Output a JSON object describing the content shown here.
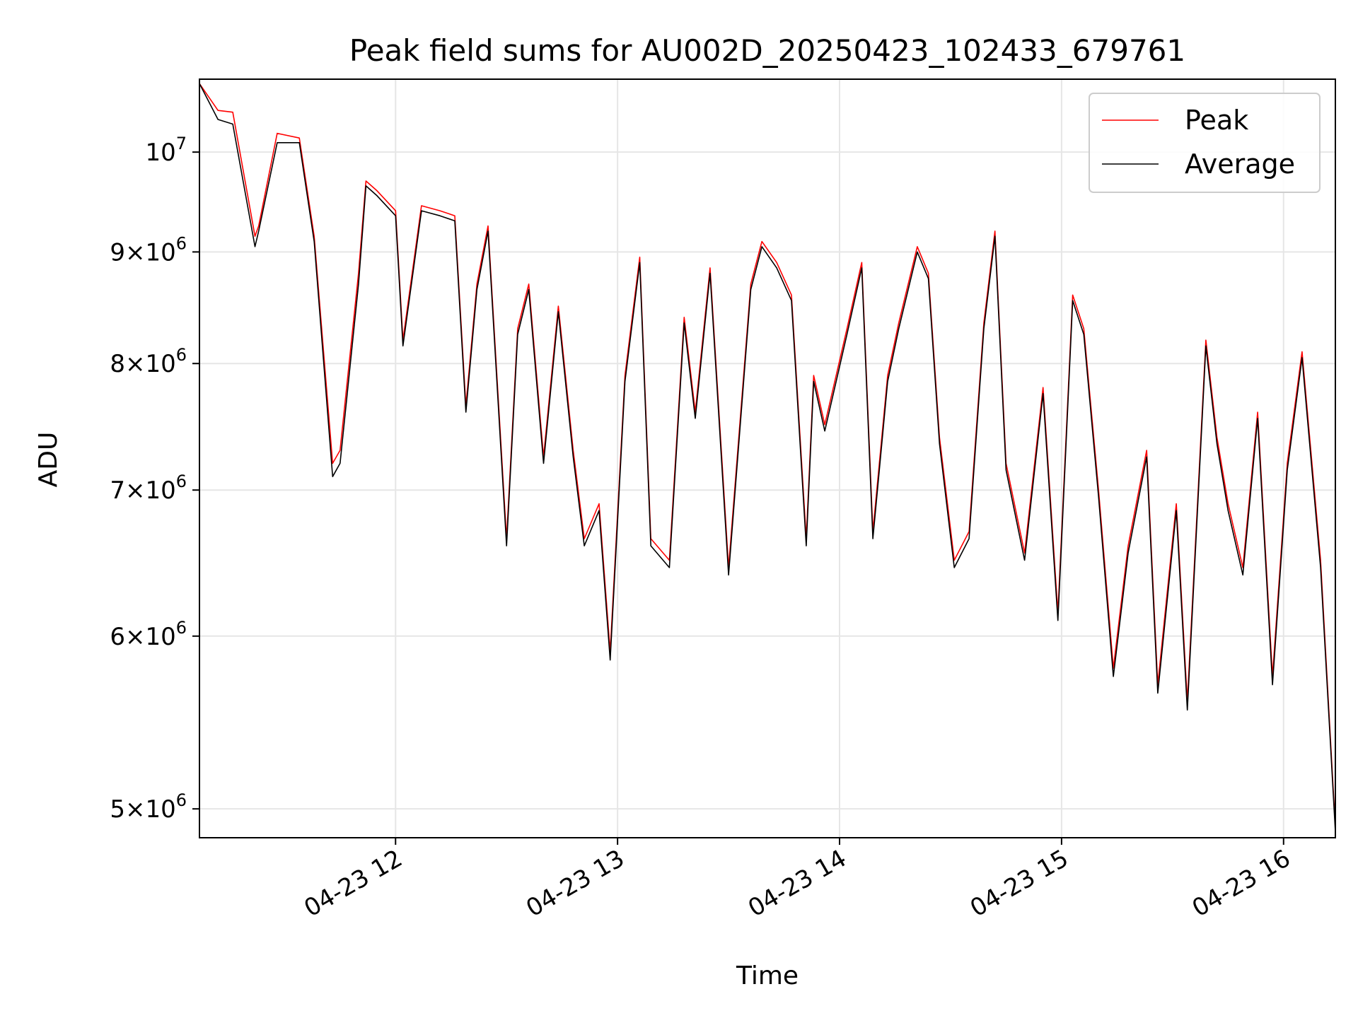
{
  "chart_data": {
    "type": "line",
    "title": "Peak field sums for AU002D_20250423_102433_679761",
    "xlabel": "Time",
    "ylabel": "ADU",
    "y_scale": "log",
    "grid": true,
    "legend_position": "top-right",
    "xlim": [
      "2025-04-23 11:07",
      "2025-04-23 16:14"
    ],
    "ylim": [
      4850000,
      10800000
    ],
    "x_ticks": [
      {
        "value": "2025-04-23 12:00",
        "label": "04-23 12"
      },
      {
        "value": "2025-04-23 13:00",
        "label": "04-23 13"
      },
      {
        "value": "2025-04-23 14:00",
        "label": "04-23 14"
      },
      {
        "value": "2025-04-23 15:00",
        "label": "04-23 15"
      },
      {
        "value": "2025-04-23 16:00",
        "label": "04-23 16"
      }
    ],
    "y_ticks": [
      {
        "value": 5000000,
        "base": "5",
        "exp": "6"
      },
      {
        "value": 6000000,
        "base": "6",
        "exp": "6"
      },
      {
        "value": 7000000,
        "base": "7",
        "exp": "6"
      },
      {
        "value": 8000000,
        "base": "8",
        "exp": "6"
      },
      {
        "value": 9000000,
        "base": "9",
        "exp": "6"
      },
      {
        "value": 10000000,
        "base": "10",
        "exp": "7"
      }
    ],
    "series": [
      {
        "name": "Peak",
        "color": "#ff0000",
        "x": [
          "2025-04-23 11:07",
          "2025-04-23 11:12",
          "2025-04-23 11:16",
          "2025-04-23 11:22",
          "2025-04-23 11:23",
          "2025-04-23 11:28",
          "2025-04-23 11:34",
          "2025-04-23 11:38",
          "2025-04-23 11:43",
          "2025-04-23 11:45",
          "2025-04-23 11:50",
          "2025-04-23 11:52",
          "2025-04-23 11:55",
          "2025-04-23 12:00",
          "2025-04-23 12:02",
          "2025-04-23 12:07",
          "2025-04-23 12:12",
          "2025-04-23 12:16",
          "2025-04-23 12:19",
          "2025-04-23 12:22",
          "2025-04-23 12:25",
          "2025-04-23 12:30",
          "2025-04-23 12:33",
          "2025-04-23 12:36",
          "2025-04-23 12:40",
          "2025-04-23 12:44",
          "2025-04-23 12:48",
          "2025-04-23 12:51",
          "2025-04-23 12:55",
          "2025-04-23 12:58",
          "2025-04-23 13:02",
          "2025-04-23 13:06",
          "2025-04-23 13:09",
          "2025-04-23 13:14",
          "2025-04-23 13:18",
          "2025-04-23 13:21",
          "2025-04-23 13:25",
          "2025-04-23 13:30",
          "2025-04-23 13:36",
          "2025-04-23 13:39",
          "2025-04-23 13:43",
          "2025-04-23 13:47",
          "2025-04-23 13:51",
          "2025-04-23 13:53",
          "2025-04-23 13:56",
          "2025-04-23 14:02",
          "2025-04-23 14:06",
          "2025-04-23 14:09",
          "2025-04-23 14:13",
          "2025-04-23 14:16",
          "2025-04-23 14:21",
          "2025-04-23 14:24",
          "2025-04-23 14:27",
          "2025-04-23 14:31",
          "2025-04-23 14:35",
          "2025-04-23 14:39",
          "2025-04-23 14:42",
          "2025-04-23 14:45",
          "2025-04-23 14:50",
          "2025-04-23 14:55",
          "2025-04-23 14:59",
          "2025-04-23 15:03",
          "2025-04-23 15:06",
          "2025-04-23 15:10",
          "2025-04-23 15:14",
          "2025-04-23 15:18",
          "2025-04-23 15:23",
          "2025-04-23 15:26",
          "2025-04-23 15:31",
          "2025-04-23 15:34",
          "2025-04-23 15:39",
          "2025-04-23 15:42",
          "2025-04-23 15:45",
          "2025-04-23 15:49",
          "2025-04-23 15:53",
          "2025-04-23 15:57",
          "2025-04-23 16:01",
          "2025-04-23 16:05",
          "2025-04-23 16:10",
          "2025-04-23 16:14"
        ],
        "y": [
          10750000,
          10450000,
          10430000,
          9150000,
          9250000,
          10200000,
          10150000,
          9150000,
          7200000,
          7300000,
          8800000,
          9700000,
          9600000,
          9400000,
          8200000,
          9450000,
          9400000,
          9350000,
          7650000,
          8700000,
          9250000,
          6650000,
          8300000,
          8700000,
          7250000,
          8500000,
          7300000,
          6650000,
          6900000,
          5900000,
          7900000,
          8950000,
          6650000,
          6500000,
          8400000,
          7600000,
          8850000,
          6450000,
          8700000,
          9100000,
          8900000,
          8600000,
          6650000,
          7900000,
          7500000,
          8300000,
          8900000,
          6700000,
          7900000,
          8350000,
          9050000,
          8800000,
          7400000,
          6500000,
          6700000,
          8350000,
          9200000,
          7200000,
          6550000,
          7800000,
          6150000,
          8600000,
          8300000,
          7000000,
          5800000,
          6600000,
          7300000,
          5700000,
          6900000,
          5600000,
          8200000,
          7400000,
          6900000,
          6450000,
          7600000,
          5750000,
          7200000,
          8100000,
          6500000,
          4900000
        ]
      },
      {
        "name": "Average",
        "color": "#000000",
        "x": [
          "2025-04-23 11:07",
          "2025-04-23 11:12",
          "2025-04-23 11:16",
          "2025-04-23 11:22",
          "2025-04-23 11:23",
          "2025-04-23 11:28",
          "2025-04-23 11:34",
          "2025-04-23 11:38",
          "2025-04-23 11:43",
          "2025-04-23 11:45",
          "2025-04-23 11:50",
          "2025-04-23 11:52",
          "2025-04-23 11:55",
          "2025-04-23 12:00",
          "2025-04-23 12:02",
          "2025-04-23 12:07",
          "2025-04-23 12:12",
          "2025-04-23 12:16",
          "2025-04-23 12:19",
          "2025-04-23 12:22",
          "2025-04-23 12:25",
          "2025-04-23 12:30",
          "2025-04-23 12:33",
          "2025-04-23 12:36",
          "2025-04-23 12:40",
          "2025-04-23 12:44",
          "2025-04-23 12:48",
          "2025-04-23 12:51",
          "2025-04-23 12:55",
          "2025-04-23 12:58",
          "2025-04-23 13:02",
          "2025-04-23 13:06",
          "2025-04-23 13:09",
          "2025-04-23 13:14",
          "2025-04-23 13:18",
          "2025-04-23 13:21",
          "2025-04-23 13:25",
          "2025-04-23 13:30",
          "2025-04-23 13:36",
          "2025-04-23 13:39",
          "2025-04-23 13:43",
          "2025-04-23 13:47",
          "2025-04-23 13:51",
          "2025-04-23 13:53",
          "2025-04-23 13:56",
          "2025-04-23 14:02",
          "2025-04-23 14:06",
          "2025-04-23 14:09",
          "2025-04-23 14:13",
          "2025-04-23 14:16",
          "2025-04-23 14:21",
          "2025-04-23 14:24",
          "2025-04-23 14:27",
          "2025-04-23 14:31",
          "2025-04-23 14:35",
          "2025-04-23 14:39",
          "2025-04-23 14:42",
          "2025-04-23 14:45",
          "2025-04-23 14:50",
          "2025-04-23 14:55",
          "2025-04-23 14:59",
          "2025-04-23 15:03",
          "2025-04-23 15:06",
          "2025-04-23 15:10",
          "2025-04-23 15:14",
          "2025-04-23 15:18",
          "2025-04-23 15:23",
          "2025-04-23 15:26",
          "2025-04-23 15:31",
          "2025-04-23 15:34",
          "2025-04-23 15:39",
          "2025-04-23 15:42",
          "2025-04-23 15:45",
          "2025-04-23 15:49",
          "2025-04-23 15:53",
          "2025-04-23 15:57",
          "2025-04-23 16:01",
          "2025-04-23 16:05",
          "2025-04-23 16:10",
          "2025-04-23 16:14"
        ],
        "y": [
          10750000,
          10350000,
          10300000,
          9050000,
          9200000,
          10100000,
          10100000,
          9100000,
          7100000,
          7200000,
          8700000,
          9650000,
          9550000,
          9350000,
          8150000,
          9400000,
          9350000,
          9300000,
          7600000,
          8650000,
          9200000,
          6600000,
          8250000,
          8650000,
          7200000,
          8450000,
          7250000,
          6600000,
          6850000,
          5850000,
          7850000,
          8900000,
          6600000,
          6450000,
          8350000,
          7550000,
          8800000,
          6400000,
          8650000,
          9050000,
          8850000,
          8550000,
          6600000,
          7850000,
          7450000,
          8250000,
          8850000,
          6650000,
          7850000,
          8300000,
          9000000,
          8750000,
          7350000,
          6450000,
          6650000,
          8300000,
          9150000,
          7150000,
          6500000,
          7750000,
          6100000,
          8550000,
          8250000,
          6950000,
          5750000,
          6550000,
          7250000,
          5650000,
          6850000,
          5550000,
          8150000,
          7350000,
          6850000,
          6400000,
          7550000,
          5700000,
          7150000,
          8050000,
          6450000,
          4880000
        ]
      }
    ]
  }
}
